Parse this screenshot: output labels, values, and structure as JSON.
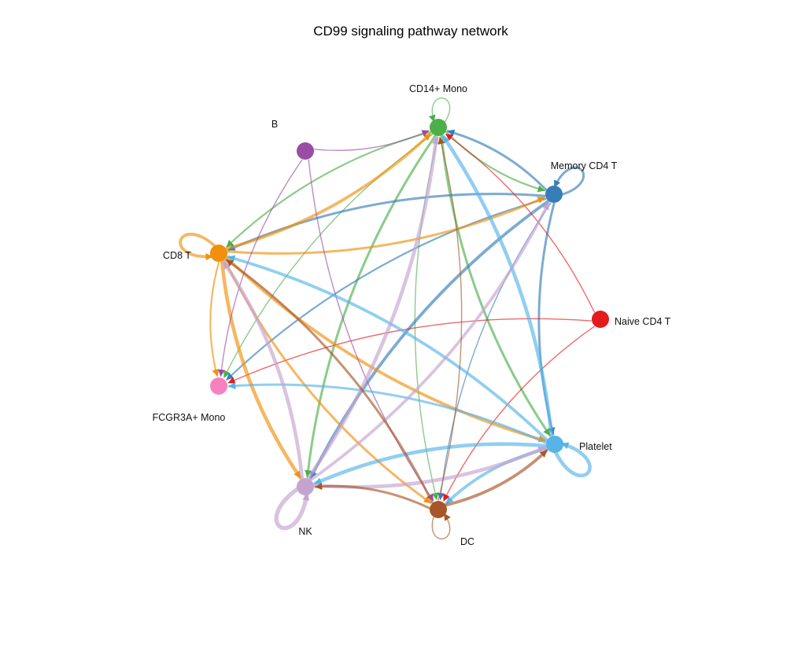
{
  "title": "CD99 signaling pathway network",
  "nodes": [
    {
      "id": "cd14",
      "label": "CD14+ Mono",
      "color": "#4DAF4A"
    },
    {
      "id": "mem4",
      "label": "Memory CD4 T",
      "color": "#377EB8"
    },
    {
      "id": "naive",
      "label": "Naive CD4 T",
      "color": "#E41A1C"
    },
    {
      "id": "platelet",
      "label": "Platelet",
      "color": "#56B4E9"
    },
    {
      "id": "dc",
      "label": "DC",
      "color": "#A65628"
    },
    {
      "id": "nk",
      "label": "NK",
      "color": "#C5A3CF"
    },
    {
      "id": "fcgr",
      "label": "FCGR3A+ Mono",
      "color": "#F781BF"
    },
    {
      "id": "cd8",
      "label": "CD8 T",
      "color": "#F0900E"
    },
    {
      "id": "b",
      "label": "B",
      "color": "#984EA3"
    }
  ],
  "edges": [
    {
      "source": "cd14",
      "target": "cd14",
      "weight": 1
    },
    {
      "source": "cd14",
      "target": "mem4",
      "weight": 2
    },
    {
      "source": "cd14",
      "target": "cd8",
      "weight": 2
    },
    {
      "source": "cd14",
      "target": "fcgr",
      "weight": 1
    },
    {
      "source": "cd14",
      "target": "nk",
      "weight": 3
    },
    {
      "source": "cd14",
      "target": "dc",
      "weight": 1
    },
    {
      "source": "cd14",
      "target": "platelet",
      "weight": 3
    },
    {
      "source": "mem4",
      "target": "mem4",
      "weight": 3
    },
    {
      "source": "mem4",
      "target": "cd8",
      "weight": 3
    },
    {
      "source": "mem4",
      "target": "fcgr",
      "weight": 2
    },
    {
      "source": "mem4",
      "target": "nk",
      "weight": 4
    },
    {
      "source": "mem4",
      "target": "platelet",
      "weight": 3
    },
    {
      "source": "mem4",
      "target": "dc",
      "weight": 1
    },
    {
      "source": "mem4",
      "target": "cd14",
      "weight": 3
    },
    {
      "source": "naive",
      "target": "cd14",
      "weight": 1
    },
    {
      "source": "naive",
      "target": "fcgr",
      "weight": 1
    },
    {
      "source": "naive",
      "target": "dc",
      "weight": 1
    },
    {
      "source": "cd8",
      "target": "cd8",
      "weight": 4
    },
    {
      "source": "cd8",
      "target": "cd14",
      "weight": 4
    },
    {
      "source": "cd8",
      "target": "mem4",
      "weight": 3
    },
    {
      "source": "cd8",
      "target": "fcgr",
      "weight": 2
    },
    {
      "source": "cd8",
      "target": "nk",
      "weight": 5
    },
    {
      "source": "cd8",
      "target": "dc",
      "weight": 3
    },
    {
      "source": "cd8",
      "target": "platelet",
      "weight": 4
    },
    {
      "source": "b",
      "target": "cd14",
      "weight": 1
    },
    {
      "source": "b",
      "target": "fcgr",
      "weight": 1
    },
    {
      "source": "b",
      "target": "dc",
      "weight": 1
    },
    {
      "source": "platelet",
      "target": "platelet",
      "weight": 5
    },
    {
      "source": "platelet",
      "target": "cd14",
      "weight": 5
    },
    {
      "source": "platelet",
      "target": "cd8",
      "weight": 4
    },
    {
      "source": "platelet",
      "target": "fcgr",
      "weight": 3
    },
    {
      "source": "platelet",
      "target": "nk",
      "weight": 5
    },
    {
      "source": "platelet",
      "target": "dc",
      "weight": 4
    },
    {
      "source": "nk",
      "target": "nk",
      "weight": 6
    },
    {
      "source": "nk",
      "target": "cd14",
      "weight": 5
    },
    {
      "source": "nk",
      "target": "cd8",
      "weight": 5
    },
    {
      "source": "nk",
      "target": "platelet",
      "weight": 5
    },
    {
      "source": "nk",
      "target": "mem4",
      "weight": 4
    },
    {
      "source": "dc",
      "target": "dc",
      "weight": 1
    },
    {
      "source": "dc",
      "target": "nk",
      "weight": 3
    },
    {
      "source": "dc",
      "target": "cd8",
      "weight": 3
    },
    {
      "source": "dc",
      "target": "platelet",
      "weight": 4
    },
    {
      "source": "dc",
      "target": "cd14",
      "weight": 1
    }
  ]
}
